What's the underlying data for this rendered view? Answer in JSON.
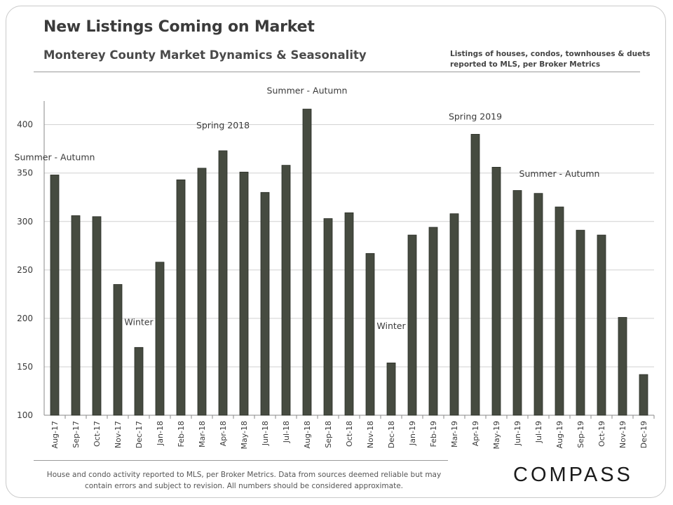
{
  "header": {
    "title": "New Listings Coming on Market",
    "subtitle": "Monterey County Market Dynamics & Seasonality",
    "note_line1": "Listings of houses, condos, townhouses & duets",
    "note_line2": "reported to MLS, per Broker Metrics"
  },
  "footer": {
    "line1": "House and condo activity reported to MLS, per Broker Metrics. Data from sources deemed reliable but may",
    "line2": "contain errors and subject to revision. All numbers should be considered approximate.",
    "logo_text": "COMPASS"
  },
  "colors": {
    "bar": "#464b40",
    "bar_edge": "#2a2e26",
    "grid": "#d0d0d0",
    "axis": "#8a8a8a",
    "text": "#3a3a3a"
  },
  "chart_data": {
    "type": "bar",
    "title": "New Listings Coming on Market",
    "xlabel": "",
    "ylabel": "",
    "ylim": [
      100,
      420
    ],
    "yticks": [
      100,
      150,
      200,
      250,
      300,
      350,
      400
    ],
    "grid": true,
    "categories": [
      "Aug-17",
      "Sep-17",
      "Oct-17",
      "Nov-17",
      "Dec-17",
      "Jan-18",
      "Feb-18",
      "Mar-18",
      "Apr-18",
      "May-18",
      "Jun-18",
      "Jul-18",
      "Aug-18",
      "Sep-18",
      "Oct-18",
      "Nov-18",
      "Dec-18",
      "Jan-19",
      "Feb-19",
      "Mar-19",
      "Apr-19",
      "May-19",
      "Jun-19",
      "Jul-19",
      "Aug-19",
      "Sep-19",
      "Oct-19",
      "Nov-19",
      "Dec-19"
    ],
    "values": [
      348,
      306,
      305,
      235,
      170,
      258,
      343,
      355,
      373,
      351,
      330,
      358,
      416,
      303,
      309,
      267,
      154,
      286,
      294,
      308,
      390,
      356,
      332,
      329,
      315,
      291,
      286,
      201,
      142
    ],
    "annotations": [
      {
        "text": "Summer - Autumn",
        "index": 0,
        "value": 363
      },
      {
        "text": "Winter",
        "index": 4,
        "value": 193
      },
      {
        "text": "Spring 2018",
        "index": 8,
        "value": 396
      },
      {
        "text": "Summer - Autumn",
        "index": 12,
        "value": 432
      },
      {
        "text": "Winter",
        "index": 16,
        "value": 189
      },
      {
        "text": "Spring 2019",
        "index": 20,
        "value": 405
      },
      {
        "text": "Summer - Autumn",
        "index": 24,
        "value": 346
      }
    ]
  }
}
